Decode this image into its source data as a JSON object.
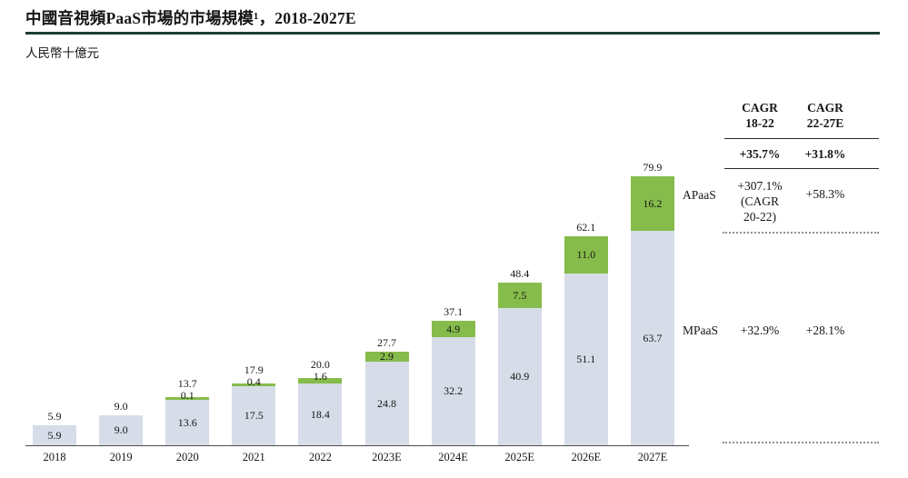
{
  "title": "中國音視頻PaaS市場的市場規模¹，2018-2027E",
  "subtitle": "人民幣十億元",
  "series_labels": {
    "apaas": "APaaS",
    "mpaas": "MPaaS"
  },
  "cagr_panel": {
    "headers": [
      {
        "line1": "CAGR",
        "line2": "18-22"
      },
      {
        "line1": "CAGR",
        "line2": "22-27E"
      }
    ],
    "total_row": [
      "+35.7%",
      "+31.8%"
    ],
    "apaas_row": {
      "col1_lines": [
        "+307.1%",
        "(CAGR",
        "20-22)"
      ],
      "col2": "+58.3%"
    },
    "mpaas_row": [
      "+32.9%",
      "+28.1%"
    ]
  },
  "colors": {
    "mpaas_fill": "#d7dde8",
    "apaas_fill": "#86bc4b",
    "title_rule": "#1d3d2f",
    "axis": "#4d4d4d",
    "dotted": "#8f8f8f"
  },
  "chart_data": {
    "type": "bar",
    "stacked": true,
    "title": "中國音視頻PaaS市場的市場規模，2018-2027E",
    "ylabel": "人民幣十億元",
    "xlabel": "",
    "ylim": [
      0,
      85
    ],
    "grid": false,
    "legend_position": "right-of-last-bar",
    "categories": [
      "2018",
      "2019",
      "2020",
      "2021",
      "2022",
      "2023E",
      "2024E",
      "2025E",
      "2026E",
      "2027E"
    ],
    "series": [
      {
        "name": "MPaaS",
        "values": [
          5.9,
          9.0,
          13.6,
          17.5,
          18.4,
          24.8,
          32.2,
          40.9,
          51.1,
          63.7
        ]
      },
      {
        "name": "APaaS",
        "values": [
          null,
          null,
          0.1,
          0.4,
          1.6,
          2.9,
          4.9,
          7.5,
          11.0,
          16.2
        ]
      }
    ],
    "totals": [
      5.9,
      9.0,
      13.7,
      17.9,
      20.0,
      27.7,
      37.1,
      48.4,
      62.1,
      79.9
    ],
    "cagr_18_22": {
      "total": "+35.7%",
      "apaas": "+307.1% (CAGR 20-22)",
      "mpaas": "+32.9%"
    },
    "cagr_22_27e": {
      "total": "+31.8%",
      "apaas": "+58.3%",
      "mpaas": "+28.1%"
    }
  }
}
